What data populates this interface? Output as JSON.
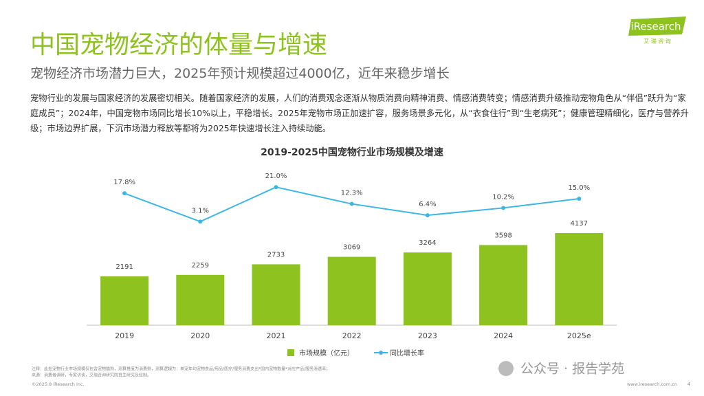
{
  "header": {
    "title": "中国宠物经济的体量与增速",
    "subtitle": "宠物经济市场潜力巨大，2025年预计规模超过4000亿，近年来稳步增长",
    "logo": "iResearch",
    "logo_sub": "艾 瑞 咨 询"
  },
  "body": {
    "paragraph": "宠物行业的发展与国家经济的发展密切相关。随着国家经济的发展，人们的消费观念逐渐从物质消费向精神消费、情感消费转变；情感消费升级推动宠物角色从“伴侣”跃升为“家庭成员”；2024年，中国宠物市场同比增长10%以上，平稳增长。2025年宠物市场正加速扩容，服务场景多元化，从“衣食住行”到“生老病死”；健康管理精细化，医疗与营养升级；市场边界扩展，下沉市场潜力释放等都将为2025年快速增长注入持续动能。"
  },
  "chart_data": {
    "type": "bar-line",
    "title": "2019-2025中国宠物行业市场规模及增速",
    "categories": [
      "2019",
      "2020",
      "2021",
      "2022",
      "2023",
      "2024",
      "2025e"
    ],
    "series": [
      {
        "name": "市场规模（亿元）",
        "color": "#8dc21f",
        "type": "bar",
        "values": [
          2191,
          2259,
          2733,
          3069,
          3264,
          3598,
          4137
        ]
      },
      {
        "name": "同比增长率",
        "color": "#3cb6e3",
        "type": "line",
        "axis": "y2",
        "values": [
          17.8,
          3.1,
          21.0,
          12.3,
          6.4,
          10.2,
          15.0
        ],
        "value_labels": [
          "17.8%",
          "3.1%",
          "21.0%",
          "12.3%",
          "6.4%",
          "10.2%",
          "15.0%"
        ]
      }
    ],
    "ylim": [
      0,
      5000
    ],
    "y2lim": [
      0,
      25
    ],
    "legend": "bottom"
  },
  "footer": {
    "note": "注释：此处宠物行业市场规模仅包含宠物猫狗，测算推度为消费侧，测算逻辑为：单宠年均宠物食品/用品/医疗/服务消费支出*国内宠物数量*对应产品/服务渗透率；",
    "source": "来源：消费者调研，专家访谈，艾瑞咨询研究院自主研究及绘制。",
    "copyright": "©2025.8 iResearch Inc.",
    "website": "www.iresearch.com.cn",
    "page": "4",
    "watermark": "公众号 · 报告学苑"
  }
}
